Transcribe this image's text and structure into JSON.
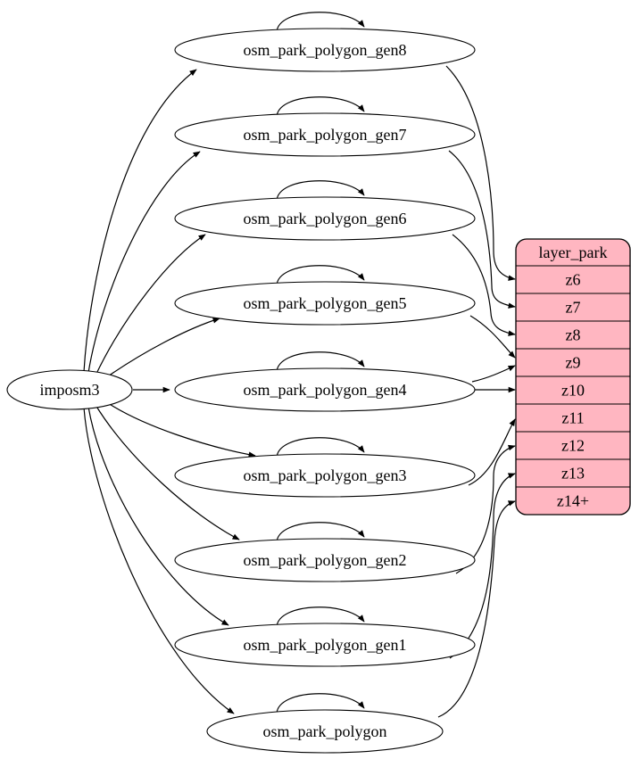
{
  "diagram": {
    "type": "etl-graph",
    "background": "#ffffff",
    "source_node": {
      "label": "imposm3"
    },
    "table_nodes": [
      {
        "label": "osm_park_polygon_gen8"
      },
      {
        "label": "osm_park_polygon_gen7"
      },
      {
        "label": "osm_park_polygon_gen6"
      },
      {
        "label": "osm_park_polygon_gen5"
      },
      {
        "label": "osm_park_polygon_gen4"
      },
      {
        "label": "osm_park_polygon_gen3"
      },
      {
        "label": "osm_park_polygon_gen2"
      },
      {
        "label": "osm_park_polygon_gen1"
      },
      {
        "label": "osm_park_polygon"
      }
    ],
    "layer_node": {
      "title": "layer_park",
      "rows": [
        "z6",
        "z7",
        "z8",
        "z9",
        "z10",
        "z11",
        "z12",
        "z13",
        "z14+"
      ],
      "fill": "#ffb6c1",
      "stroke": "#000000"
    },
    "edges": {
      "from_source": [
        "osm_park_polygon_gen8",
        "osm_park_polygon_gen7",
        "osm_park_polygon_gen6",
        "osm_park_polygon_gen5",
        "osm_park_polygon_gen4",
        "osm_park_polygon_gen3",
        "osm_park_polygon_gen2",
        "osm_park_polygon_gen1",
        "osm_park_polygon"
      ],
      "self_loops": [
        "osm_park_polygon_gen8",
        "osm_park_polygon_gen7",
        "osm_park_polygon_gen6",
        "osm_park_polygon_gen5",
        "osm_park_polygon_gen4",
        "osm_park_polygon_gen3",
        "osm_park_polygon_gen2",
        "osm_park_polygon_gen1",
        "osm_park_polygon"
      ],
      "to_layer_rows": [
        {
          "from": "osm_park_polygon_gen8",
          "to": "z6"
        },
        {
          "from": "osm_park_polygon_gen7",
          "to": "z7"
        },
        {
          "from": "osm_park_polygon_gen6",
          "to": "z8"
        },
        {
          "from": "osm_park_polygon_gen5",
          "to": "z9"
        },
        {
          "from": "osm_park_polygon_gen4",
          "to": "z9"
        },
        {
          "from": "osm_park_polygon_gen4",
          "to": "z10"
        },
        {
          "from": "osm_park_polygon_gen3",
          "to": "z11"
        },
        {
          "from": "osm_park_polygon_gen2",
          "to": "z12"
        },
        {
          "from": "osm_park_polygon_gen1",
          "to": "z13"
        },
        {
          "from": "osm_park_polygon",
          "to": "z14+"
        }
      ]
    }
  }
}
